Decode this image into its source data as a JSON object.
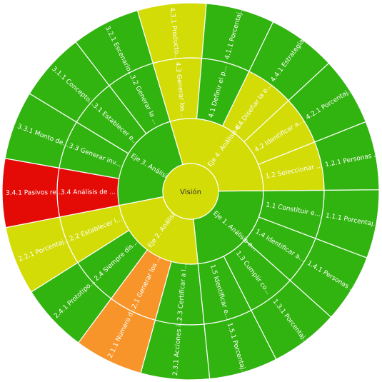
{
  "chart_data": {
    "type": "sunburst",
    "center": {
      "label": "Visión"
    },
    "colors": {
      "green": "#31b310",
      "yellow": "#d3dc06",
      "orange": "#f7952a",
      "red": "#e40b07"
    },
    "nodes": [
      {
        "label": "Eje 1. Análisis o...",
        "color": "green",
        "children": [
          {
            "label": "1.1 Constituir e...",
            "color": "green",
            "children": [
              {
                "label": "1.1.1 Porcentaj...",
                "color": "green"
              }
            ]
          },
          {
            "label": "1.4 Identificar a...",
            "color": "green",
            "children": [
              {
                "label": "1.4.1 Personas ...",
                "color": "green"
              }
            ]
          },
          {
            "label": "1.3 Cumplir co...",
            "color": "green",
            "children": [
              {
                "label": "1.3.1 Porcentaj...",
                "color": "green"
              }
            ]
          },
          {
            "label": "1.5 Identificar e...",
            "color": "green",
            "children": [
              {
                "label": "1.5.1 Porcentaj...",
                "color": "green"
              }
            ]
          }
        ]
      },
      {
        "label": "Eje 2. Análisis d...",
        "color": "yellow",
        "children": [
          {
            "label": "2.3 Certificar a l...",
            "color": "green",
            "children": [
              {
                "label": "2.3.1 Acciones i...",
                "color": "green"
              }
            ]
          },
          {
            "label": "2.1 Generar los ...",
            "color": "orange",
            "children": [
              {
                "label": "2.1.1 Número d...",
                "color": "orange"
              }
            ]
          },
          {
            "label": "2.4 Siempre dis...",
            "color": "green",
            "children": [
              {
                "label": "2.4.1 Prototipo...",
                "color": "green"
              }
            ]
          },
          {
            "label": "2.2 Establecer l...",
            "color": "yellow",
            "children": [
              {
                "label": "2.2.1 Porcentaj...",
                "color": "yellow"
              }
            ]
          }
        ]
      },
      {
        "label": "Eje 3. Análisis fi...",
        "color": "green",
        "children": [
          {
            "label": "3.4 Análisis de ...",
            "color": "red",
            "children": [
              {
                "label": "3.4.1 Pasivos re...",
                "color": "red"
              }
            ]
          },
          {
            "label": "3.3 Generar inv...",
            "color": "green",
            "children": [
              {
                "label": "3.3.1 Monto de...",
                "color": "green"
              }
            ]
          },
          {
            "label": "3.1 Establecer e...",
            "color": "green",
            "children": [
              {
                "label": "3.1.1 Concepto...",
                "color": "green"
              }
            ]
          },
          {
            "label": "3.2 Generar la ...",
            "color": "green",
            "children": [
              {
                "label": "3.2.1 Escenario...",
                "color": "green"
              }
            ]
          }
        ]
      },
      {
        "label": "Eje 4. Análisis d...",
        "color": "yellow",
        "children": [
          {
            "label": "4.3 Generar los ...",
            "color": "yellow",
            "children": [
              {
                "label": "4.3.1 Producto...",
                "color": "yellow"
              }
            ]
          },
          {
            "label": "4.1 Definir el p...",
            "color": "green",
            "children": [
              {
                "label": "4.1.1 Porcentaj...",
                "color": "green"
              }
            ]
          },
          {
            "label": "4.4 Diseñar la e...",
            "color": "yellow",
            "children": [
              {
                "label": "4.4.1 Estrategia...",
                "color": "green"
              }
            ]
          },
          {
            "label": "4.2 Identificar a...",
            "color": "yellow",
            "children": [
              {
                "label": "4.2.1 Porcentaj...",
                "color": "green"
              }
            ]
          },
          {
            "label": "1.2 Seleccionar ...",
            "color": "yellow",
            "children": [
              {
                "label": "1.2.1 Personas ...",
                "color": "green"
              }
            ]
          }
        ]
      }
    ]
  }
}
